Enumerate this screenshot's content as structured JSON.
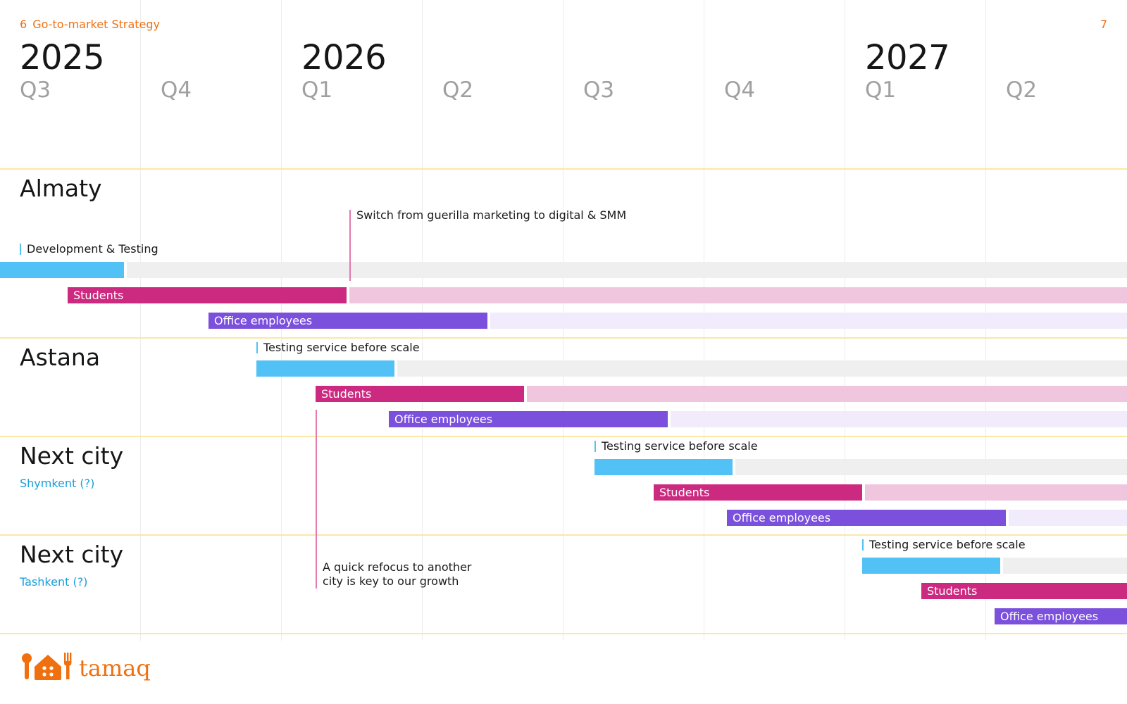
{
  "header": {
    "section_number": "6",
    "section_title": "Go-to-market Strategy",
    "page_number": "7"
  },
  "timeline": {
    "years": [
      "2025",
      "2026",
      "2027"
    ],
    "quarters": [
      "Q3",
      "Q4",
      "Q1",
      "Q2",
      "Q3",
      "Q4",
      "Q1",
      "Q2"
    ]
  },
  "rows": [
    {
      "city": "Almaty",
      "subtitle": "",
      "phase": "Development & Testing"
    },
    {
      "city": "Astana",
      "subtitle": "",
      "phase": "Testing service before scale"
    },
    {
      "city": "Next city",
      "subtitle": "Shymkent (?)",
      "phase": "Testing service before scale"
    },
    {
      "city": "Next city",
      "subtitle": "Tashkent (?)",
      "phase": "Testing service before scale"
    }
  ],
  "segments": {
    "students": "Students",
    "office": "Office employees"
  },
  "annotations": {
    "almaty_switch": "Switch from guerilla marketing to digital & SMM",
    "refocus_line1": "A quick refocus to another",
    "refocus_line2": "city is key to our growth"
  },
  "brand": {
    "name": "tamaq",
    "color": "#f07010"
  },
  "colors": {
    "testing": "#52c1f5",
    "students": "#cc2a80",
    "office": "#7b50dc",
    "marker": "#e27aae",
    "subtitle": "#1a9fd8",
    "row_divider": "#fbe7a6"
  }
}
